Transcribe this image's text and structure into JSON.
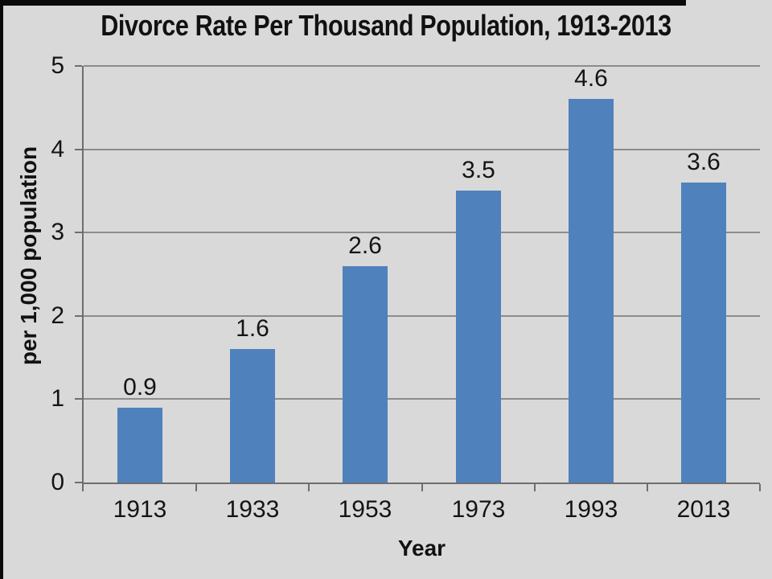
{
  "chart_data": {
    "type": "bar",
    "title": "Divorce Rate Per Thousand Population, 1913-2013",
    "categories": [
      "1913",
      "1933",
      "1953",
      "1973",
      "1993",
      "2013"
    ],
    "values": [
      0.9,
      1.6,
      2.6,
      3.5,
      4.6,
      3.6
    ],
    "data_labels": [
      "0.9",
      "1.6",
      "2.6",
      "3.5",
      "4.6",
      "3.6"
    ],
    "xlabel": "Year",
    "ylabel": "per 1,000 population",
    "ylim": [
      0,
      5
    ],
    "yticks": [
      "0",
      "1",
      "2",
      "3",
      "4",
      "5"
    ],
    "grid": true,
    "legend": false,
    "bar_color": "#4f81bd",
    "background": "#d9d9d9",
    "gridline_color": "#8c8c8c",
    "axis_color": "#6e6e6e",
    "text_color": "#141414"
  }
}
